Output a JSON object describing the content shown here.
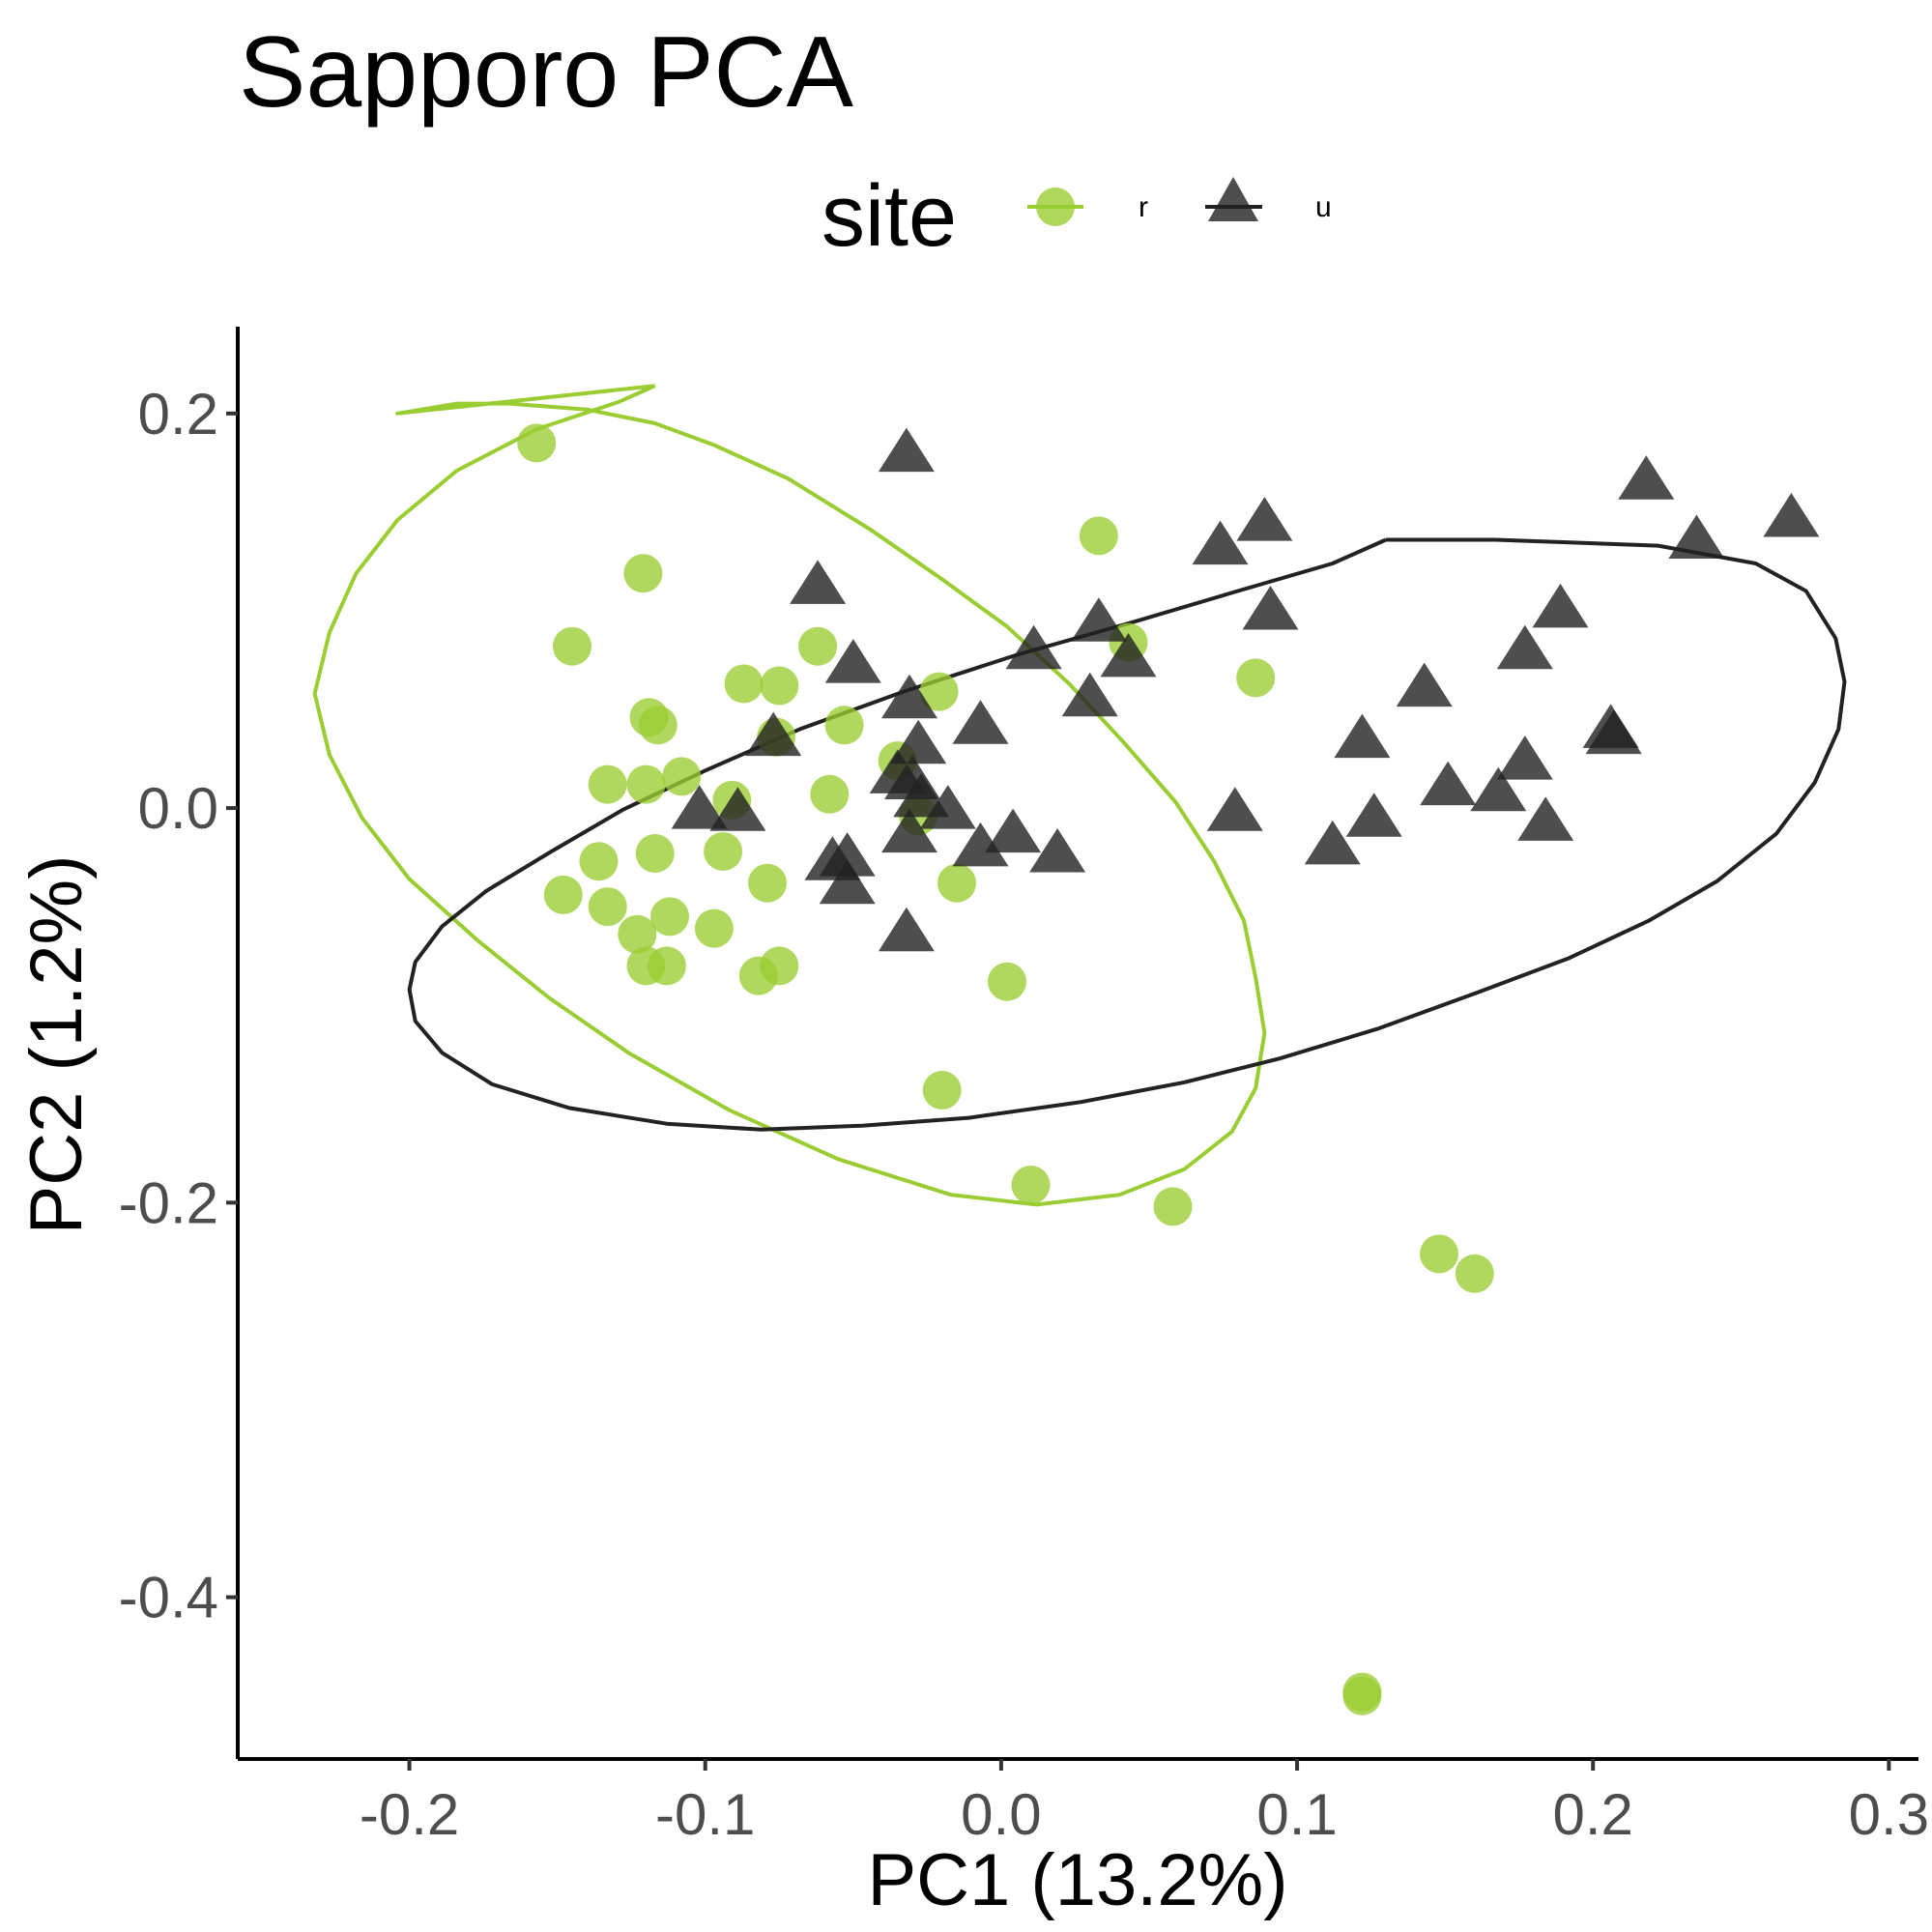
{
  "chart_data": {
    "type": "scatter",
    "title": "Sapporo PCA",
    "xlabel": "PC1 (13.2%)",
    "ylabel": "PC2 (1.2%)",
    "xlim": [
      -0.258,
      0.31
    ],
    "ylim": [
      -0.482,
      0.244
    ],
    "xticks": [
      {
        "value": -0.2,
        "label": "-0.2"
      },
      {
        "value": -0.1,
        "label": "-0.1"
      },
      {
        "value": 0.0,
        "label": "0.0"
      },
      {
        "value": 0.1,
        "label": "0.1"
      },
      {
        "value": 0.2,
        "label": "0.2"
      },
      {
        "value": 0.3,
        "label": "0.3"
      }
    ],
    "yticks": [
      {
        "value": 0.2,
        "label": "0.2"
      },
      {
        "value": 0.0,
        "label": "0.0"
      },
      {
        "value": -0.2,
        "label": "-0.2"
      },
      {
        "value": -0.4,
        "label": "-0.4"
      }
    ],
    "grid": false,
    "legend": {
      "title": "site",
      "position": "top"
    },
    "series": [
      {
        "name": "r",
        "shape": "circle",
        "color": "#9ACD32",
        "points": [
          [
            -0.157,
            0.185
          ],
          [
            -0.121,
            0.119
          ],
          [
            -0.145,
            0.082
          ],
          [
            0.033,
            0.138
          ],
          [
            -0.087,
            0.063
          ],
          [
            -0.075,
            0.062
          ],
          [
            -0.062,
            0.082
          ],
          [
            -0.021,
            0.059
          ],
          [
            -0.119,
            0.046
          ],
          [
            -0.116,
            0.042
          ],
          [
            -0.053,
            0.042
          ],
          [
            0.043,
            0.084
          ],
          [
            0.086,
            0.066
          ],
          [
            -0.076,
            0.036
          ],
          [
            -0.035,
            0.024
          ],
          [
            -0.133,
            0.012
          ],
          [
            -0.12,
            0.012
          ],
          [
            -0.108,
            0.016
          ],
          [
            -0.091,
            0.004
          ],
          [
            -0.058,
            0.007
          ],
          [
            -0.028,
            -0.004
          ],
          [
            -0.136,
            -0.027
          ],
          [
            -0.117,
            -0.023
          ],
          [
            -0.094,
            -0.022
          ],
          [
            -0.148,
            -0.044
          ],
          [
            -0.133,
            -0.05
          ],
          [
            -0.112,
            -0.055
          ],
          [
            -0.079,
            -0.038
          ],
          [
            -0.015,
            -0.038
          ],
          [
            -0.123,
            -0.064
          ],
          [
            -0.097,
            -0.061
          ],
          [
            -0.12,
            -0.08
          ],
          [
            -0.113,
            -0.08
          ],
          [
            -0.082,
            -0.085
          ],
          [
            -0.075,
            -0.08
          ],
          [
            0.002,
            -0.088
          ],
          [
            -0.02,
            -0.143
          ],
          [
            0.01,
            -0.191
          ],
          [
            0.058,
            -0.202
          ],
          [
            0.148,
            -0.226
          ],
          [
            0.16,
            -0.236
          ],
          [
            0.122,
            -0.45
          ],
          [
            0.122,
            -0.448
          ]
        ]
      },
      {
        "name": "u",
        "shape": "triangle",
        "color": "#222222",
        "points": [
          [
            -0.032,
            0.18
          ],
          [
            -0.062,
            0.113
          ],
          [
            0.074,
            0.133
          ],
          [
            0.089,
            0.145
          ],
          [
            0.218,
            0.166
          ],
          [
            0.235,
            0.136
          ],
          [
            0.267,
            0.147
          ],
          [
            0.091,
            0.1
          ],
          [
            0.189,
            0.101
          ],
          [
            0.177,
            0.08
          ],
          [
            0.033,
            0.094
          ],
          [
            0.011,
            0.08
          ],
          [
            -0.05,
            0.073
          ],
          [
            0.043,
            0.076
          ],
          [
            0.143,
            0.061
          ],
          [
            -0.031,
            0.055
          ],
          [
            0.03,
            0.056
          ],
          [
            -0.007,
            0.042
          ],
          [
            -0.077,
            0.036
          ],
          [
            -0.028,
            0.032
          ],
          [
            0.122,
            0.035
          ],
          [
            0.206,
            0.04
          ],
          [
            0.207,
            0.037
          ],
          [
            0.177,
            0.024
          ],
          [
            -0.035,
            0.017
          ],
          [
            -0.03,
            0.014
          ],
          [
            0.151,
            0.011
          ],
          [
            0.168,
            0.008
          ],
          [
            -0.102,
            -0.001
          ],
          [
            -0.089,
            -0.002
          ],
          [
            -0.027,
            0.005
          ],
          [
            -0.018,
            -0.001
          ],
          [
            0.079,
            -0.002
          ],
          [
            0.126,
            -0.005
          ],
          [
            0.184,
            -0.007
          ],
          [
            -0.031,
            -0.013
          ],
          [
            0.004,
            -0.013
          ],
          [
            -0.052,
            -0.025
          ],
          [
            -0.057,
            -0.027
          ],
          [
            -0.007,
            -0.02
          ],
          [
            0.019,
            -0.023
          ],
          [
            0.112,
            -0.019
          ],
          [
            -0.052,
            -0.039
          ],
          [
            -0.032,
            -0.063
          ]
        ]
      }
    ],
    "ellipses": [
      {
        "series": "r",
        "color": "#9ACD32",
        "points": [
          [
            -0.117,
            0.214
          ],
          [
            -0.129,
            0.206
          ],
          [
            -0.157,
            0.192
          ],
          [
            -0.184,
            0.171
          ],
          [
            -0.204,
            0.146
          ],
          [
            -0.218,
            0.119
          ],
          [
            -0.227,
            0.089
          ],
          [
            -0.232,
            0.058
          ],
          [
            -0.227,
            0.027
          ],
          [
            -0.216,
            -0.005
          ],
          [
            -0.2,
            -0.036
          ],
          [
            -0.177,
            -0.067
          ],
          [
            -0.153,
            -0.096
          ],
          [
            -0.126,
            -0.124
          ],
          [
            -0.092,
            -0.153
          ],
          [
            -0.055,
            -0.178
          ],
          [
            -0.017,
            -0.196
          ],
          [
            0.012,
            -0.201
          ],
          [
            0.04,
            -0.196
          ],
          [
            0.062,
            -0.183
          ],
          [
            0.078,
            -0.164
          ],
          [
            0.086,
            -0.142
          ],
          [
            0.089,
            -0.114
          ],
          [
            0.086,
            -0.086
          ],
          [
            0.082,
            -0.057
          ],
          [
            0.072,
            -0.027
          ],
          [
            0.059,
            0.003
          ],
          [
            0.041,
            0.034
          ],
          [
            0.023,
            0.063
          ],
          [
            0.002,
            0.092
          ],
          [
            -0.02,
            0.116
          ],
          [
            -0.044,
            0.141
          ],
          [
            -0.072,
            0.167
          ],
          [
            -0.097,
            0.184
          ],
          [
            -0.117,
            0.195
          ],
          [
            -0.14,
            0.202
          ],
          [
            -0.166,
            0.205
          ],
          [
            -0.184,
            0.205
          ],
          [
            -0.2,
            0.201
          ],
          [
            -0.204,
            0.2
          ],
          [
            -0.117,
            0.214
          ]
        ]
      },
      {
        "series": "u",
        "color": "#222222",
        "points": [
          [
            0.13,
            0.136
          ],
          [
            0.167,
            0.136
          ],
          [
            0.222,
            0.133
          ],
          [
            0.255,
            0.124
          ],
          [
            0.272,
            0.11
          ],
          [
            0.282,
            0.086
          ],
          [
            0.285,
            0.064
          ],
          [
            0.283,
            0.04
          ],
          [
            0.275,
            0.013
          ],
          [
            0.262,
            -0.013
          ],
          [
            0.242,
            -0.037
          ],
          [
            0.219,
            -0.057
          ],
          [
            0.192,
            -0.076
          ],
          [
            0.16,
            -0.094
          ],
          [
            0.127,
            -0.112
          ],
          [
            0.094,
            -0.127
          ],
          [
            0.062,
            -0.139
          ],
          [
            0.027,
            -0.149
          ],
          [
            -0.011,
            -0.157
          ],
          [
            -0.047,
            -0.161
          ],
          [
            -0.081,
            -0.163
          ],
          [
            -0.113,
            -0.16
          ],
          [
            -0.146,
            -0.152
          ],
          [
            -0.172,
            -0.14
          ],
          [
            -0.189,
            -0.124
          ],
          [
            -0.198,
            -0.108
          ],
          [
            -0.2,
            -0.092
          ],
          [
            -0.198,
            -0.078
          ],
          [
            -0.189,
            -0.06
          ],
          [
            -0.174,
            -0.042
          ],
          [
            -0.152,
            -0.022
          ],
          [
            -0.128,
            -0.001
          ],
          [
            -0.1,
            0.019
          ],
          [
            -0.068,
            0.04
          ],
          [
            -0.033,
            0.059
          ],
          [
            0.006,
            0.078
          ],
          [
            0.044,
            0.094
          ],
          [
            0.08,
            0.11
          ],
          [
            0.112,
            0.124
          ],
          [
            0.13,
            0.136
          ]
        ]
      }
    ]
  }
}
